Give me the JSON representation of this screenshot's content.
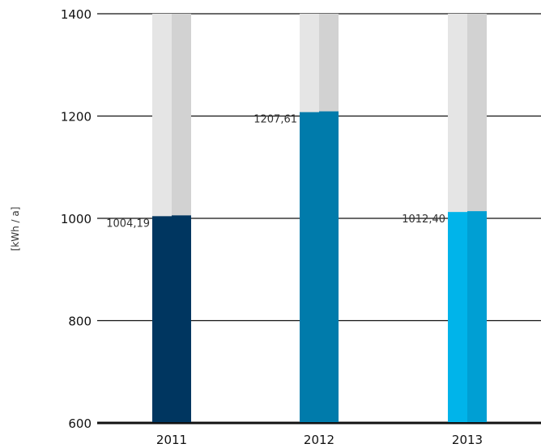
{
  "chart_data": {
    "type": "bar",
    "title": "",
    "xlabel": "",
    "ylabel": "[kWh / a]",
    "categories": [
      "2011",
      "2012",
      "2013"
    ],
    "values": [
      1004.19,
      1207.61,
      1012.4
    ],
    "value_labels": [
      "1004,19",
      "1207,61",
      "1012,40"
    ],
    "ylim": [
      600,
      1400
    ],
    "yticks": [
      600,
      800,
      1000,
      1200,
      1400
    ],
    "ytick_labels": [
      "600",
      "800",
      "1000",
      "1200",
      "1400"
    ],
    "grid": true,
    "bar_colors": [
      {
        "left": "#003660",
        "right": "#003660"
      },
      {
        "left": "#007bab",
        "right": "#007bab"
      },
      {
        "left": "#00b4ea",
        "right": "#009fd3"
      }
    ],
    "background_colors": {
      "left": "#e5e5e5",
      "right": "#d2d2d2"
    }
  }
}
